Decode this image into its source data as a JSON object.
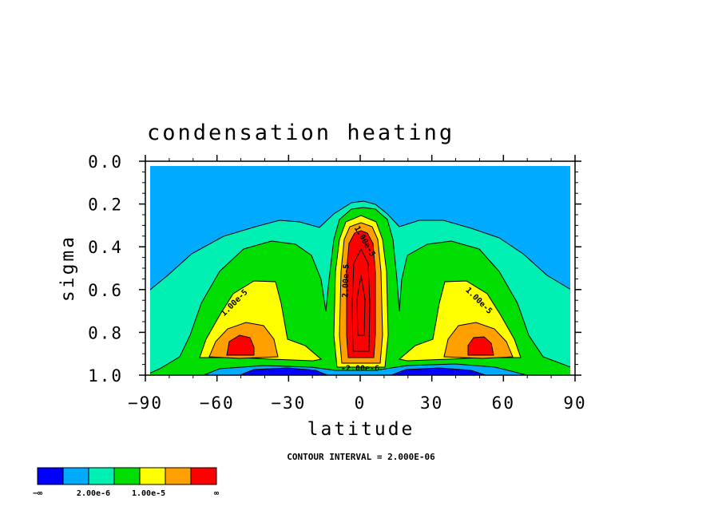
{
  "chart_data": {
    "type": "contour",
    "title": "condensation heating",
    "xlabel": "latitude",
    "ylabel": "sigma",
    "xlim": [
      -90,
      90
    ],
    "ylim": [
      1.0,
      0.0
    ],
    "x_ticks": [
      -90,
      -60,
      -30,
      0,
      30,
      60,
      90
    ],
    "x_tick_labels": [
      "−90",
      "−60",
      "−30",
      "0",
      "30",
      "60",
      "90"
    ],
    "y_ticks": [
      0.0,
      0.2,
      0.4,
      0.6,
      0.8,
      1.0
    ],
    "y_tick_labels": [
      "0.0",
      "0.2",
      "0.4",
      "0.6",
      "0.8",
      "1.0"
    ],
    "contour_interval_text": "CONTOUR INTERVAL = 2.000E-06",
    "contour_labels": [
      {
        "text": "1.00e-5",
        "x": -52,
        "y": 0.67,
        "angle": -45
      },
      {
        "text": "1.00e-5",
        "x": 49,
        "y": 0.66,
        "angle": 45
      },
      {
        "text": "1.00e-5",
        "x": 1,
        "y": 0.38,
        "angle": 60
      },
      {
        "text": "2.00e-5",
        "x": -5,
        "y": 0.56,
        "angle": -88
      },
      {
        "text": "-2.00e-6",
        "x": 0,
        "y": 0.98,
        "angle": 0
      }
    ],
    "legend": {
      "colors": [
        "#0000ff",
        "#00aaff",
        "#00f0b4",
        "#00dd00",
        "#ffff00",
        "#ff9f00",
        "#ff0000"
      ],
      "labels": [
        "−∞",
        "2.00e-6",
        "1.00e-5",
        "∞"
      ]
    }
  }
}
